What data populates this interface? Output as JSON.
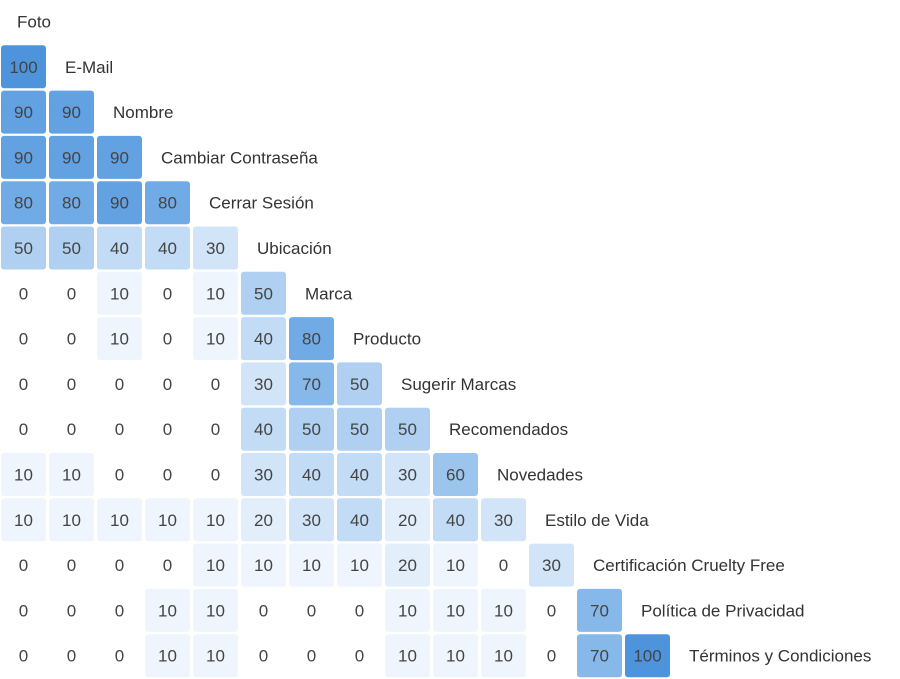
{
  "colors": {
    "text": "#444444",
    "zero": "#ffffff",
    "scale": [
      "#eef5fc",
      "#e2eefa",
      "#d2e5f8",
      "#c2dcf5",
      "#afd0f1",
      "#9cc5ee",
      "#86b8ea",
      "#71abe6",
      "#62a2e3",
      "#4d94dd"
    ]
  },
  "chart_data": {
    "type": "heatmap",
    "layout": "lower-triangular",
    "labels": [
      "Foto",
      "E-Mail",
      "Nombre",
      "Cambiar Contraseña",
      "Cerrar Sesión",
      "Ubicación",
      "Marca",
      "Producto",
      "Sugerir Marcas",
      "Recomendados",
      "Novedades",
      "Estilo de Vida",
      "Certificación Cruelty Free",
      "Política de Privacidad",
      "Términos y Condiciones"
    ],
    "rows": [
      [],
      [
        100
      ],
      [
        90,
        90
      ],
      [
        90,
        90,
        90
      ],
      [
        80,
        80,
        90,
        80
      ],
      [
        50,
        50,
        40,
        40,
        30
      ],
      [
        0,
        0,
        10,
        0,
        10,
        50
      ],
      [
        0,
        0,
        10,
        0,
        10,
        40,
        80
      ],
      [
        0,
        0,
        0,
        0,
        0,
        30,
        70,
        50
      ],
      [
        0,
        0,
        0,
        0,
        0,
        40,
        50,
        50,
        50
      ],
      [
        10,
        10,
        0,
        0,
        0,
        30,
        40,
        40,
        30,
        60
      ],
      [
        10,
        10,
        10,
        10,
        10,
        20,
        30,
        40,
        20,
        40,
        30
      ],
      [
        0,
        0,
        0,
        0,
        10,
        10,
        10,
        10,
        20,
        10,
        0,
        30
      ],
      [
        0,
        0,
        0,
        10,
        10,
        0,
        0,
        0,
        10,
        10,
        10,
        0,
        70
      ],
      [
        0,
        0,
        0,
        10,
        10,
        0,
        0,
        0,
        10,
        10,
        10,
        0,
        70,
        100
      ]
    ],
    "value_range": [
      0,
      100
    ]
  }
}
